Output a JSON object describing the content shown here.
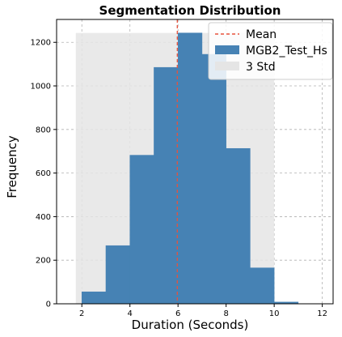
{
  "chart_data": {
    "type": "bar",
    "title": "Segmentation Distribution",
    "xlabel": "Duration (Seconds)",
    "ylabel": "Frequency",
    "xlim": [
      0.95,
      12.45
    ],
    "ylim": [
      0,
      1305
    ],
    "x_ticks": [
      2,
      4,
      6,
      8,
      10,
      12
    ],
    "y_ticks": [
      0,
      200,
      400,
      600,
      800,
      1000,
      1200
    ],
    "grid": true,
    "grid_style": "dashed",
    "legend_position": "top-right",
    "series": [
      {
        "name": "MGB2_Test_Hs",
        "type": "histogram",
        "color": "#4682b4",
        "bins": [
          {
            "x0": 2,
            "x1": 3,
            "value": 55
          },
          {
            "x0": 3,
            "x1": 4,
            "value": 267
          },
          {
            "x0": 4,
            "x1": 5,
            "value": 682
          },
          {
            "x0": 5,
            "x1": 6,
            "value": 1085
          },
          {
            "x0": 6,
            "x1": 7,
            "value": 1243
          },
          {
            "x0": 7,
            "x1": 8,
            "value": 1145
          },
          {
            "x0": 8,
            "x1": 9,
            "value": 713
          },
          {
            "x0": 9,
            "x1": 10,
            "value": 165
          },
          {
            "x0": 10,
            "x1": 11,
            "value": 8
          }
        ]
      },
      {
        "name": "Mean",
        "type": "vline",
        "x": 5.97,
        "color": "#e8513d"
      },
      {
        "name": "3 Std",
        "type": "span",
        "x0": 1.75,
        "x1": 10.0,
        "height": 1243,
        "color": "#e5e5e5"
      }
    ]
  }
}
